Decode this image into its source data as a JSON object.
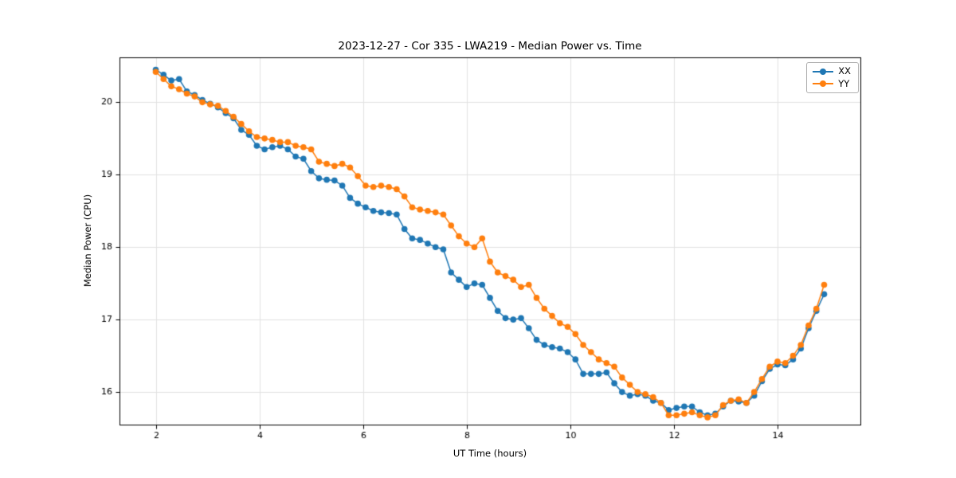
{
  "chart_data": {
    "type": "line",
    "title": "2023-12-27 - Cor 335 - LWA219 - Median Power vs. Time",
    "xlabel": "UT Time (hours)",
    "ylabel": "Median Power (CPU)",
    "xlim": [
      1.3,
      15.6
    ],
    "ylim": [
      15.55,
      20.62
    ],
    "xticks": [
      2,
      4,
      6,
      8,
      10,
      12,
      14
    ],
    "yticks": [
      16,
      17,
      18,
      19,
      20
    ],
    "grid": true,
    "legend_position": "upper right",
    "x": [
      2.0,
      2.15,
      2.3,
      2.45,
      2.6,
      2.75,
      2.9,
      3.05,
      3.2,
      3.35,
      3.5,
      3.65,
      3.8,
      3.95,
      4.1,
      4.25,
      4.4,
      4.55,
      4.7,
      4.85,
      5.0,
      5.15,
      5.3,
      5.45,
      5.6,
      5.75,
      5.9,
      6.05,
      6.2,
      6.35,
      6.5,
      6.65,
      6.8,
      6.95,
      7.1,
      7.25,
      7.4,
      7.55,
      7.7,
      7.85,
      8.0,
      8.15,
      8.3,
      8.45,
      8.6,
      8.75,
      8.9,
      9.05,
      9.2,
      9.35,
      9.5,
      9.65,
      9.8,
      9.95,
      10.1,
      10.25,
      10.4,
      10.55,
      10.7,
      10.85,
      11.0,
      11.15,
      11.3,
      11.45,
      11.6,
      11.75,
      11.9,
      12.05,
      12.2,
      12.35,
      12.5,
      12.65,
      12.8,
      12.95,
      13.1,
      13.25,
      13.4,
      13.55,
      13.7,
      13.85,
      14.0,
      14.15,
      14.3,
      14.45,
      14.6,
      14.75,
      14.9
    ],
    "series": [
      {
        "name": "XX",
        "color": "#1f77b4",
        "values": [
          20.45,
          20.38,
          20.3,
          20.32,
          20.15,
          20.1,
          20.03,
          19.98,
          19.93,
          19.85,
          19.78,
          19.62,
          19.55,
          19.4,
          19.35,
          19.38,
          19.4,
          19.35,
          19.25,
          19.22,
          19.05,
          18.95,
          18.93,
          18.92,
          18.85,
          18.68,
          18.6,
          18.55,
          18.5,
          18.48,
          18.47,
          18.45,
          18.25,
          18.12,
          18.1,
          18.05,
          18.0,
          17.97,
          17.65,
          17.55,
          17.45,
          17.5,
          17.48,
          17.3,
          17.12,
          17.02,
          17.0,
          17.02,
          16.88,
          16.72,
          16.65,
          16.62,
          16.6,
          16.55,
          16.45,
          16.25,
          16.25,
          16.25,
          16.27,
          16.12,
          16.0,
          15.95,
          15.97,
          15.95,
          15.88,
          15.85,
          15.75,
          15.78,
          15.8,
          15.8,
          15.72,
          15.68,
          15.7,
          15.8,
          15.88,
          15.87,
          15.85,
          15.95,
          16.15,
          16.32,
          16.38,
          16.37,
          16.45,
          16.6,
          16.88,
          17.12,
          17.35
        ]
      },
      {
        "name": "YY",
        "color": "#ff7f0e",
        "values": [
          20.42,
          20.32,
          20.22,
          20.18,
          20.12,
          20.08,
          20.0,
          19.97,
          19.95,
          19.88,
          19.8,
          19.7,
          19.6,
          19.52,
          19.5,
          19.48,
          19.45,
          19.45,
          19.4,
          19.38,
          19.35,
          19.18,
          19.15,
          19.12,
          19.15,
          19.1,
          18.98,
          18.85,
          18.83,
          18.85,
          18.83,
          18.8,
          18.7,
          18.55,
          18.52,
          18.5,
          18.48,
          18.45,
          18.3,
          18.15,
          18.05,
          18.0,
          18.12,
          17.8,
          17.65,
          17.6,
          17.55,
          17.45,
          17.48,
          17.3,
          17.15,
          17.05,
          16.95,
          16.9,
          16.8,
          16.65,
          16.55,
          16.45,
          16.4,
          16.35,
          16.2,
          16.1,
          16.0,
          15.97,
          15.93,
          15.85,
          15.68,
          15.68,
          15.7,
          15.72,
          15.68,
          15.65,
          15.68,
          15.82,
          15.88,
          15.9,
          15.85,
          16.0,
          16.18,
          16.35,
          16.42,
          16.4,
          16.5,
          16.65,
          16.92,
          17.15,
          17.48
        ]
      }
    ]
  }
}
